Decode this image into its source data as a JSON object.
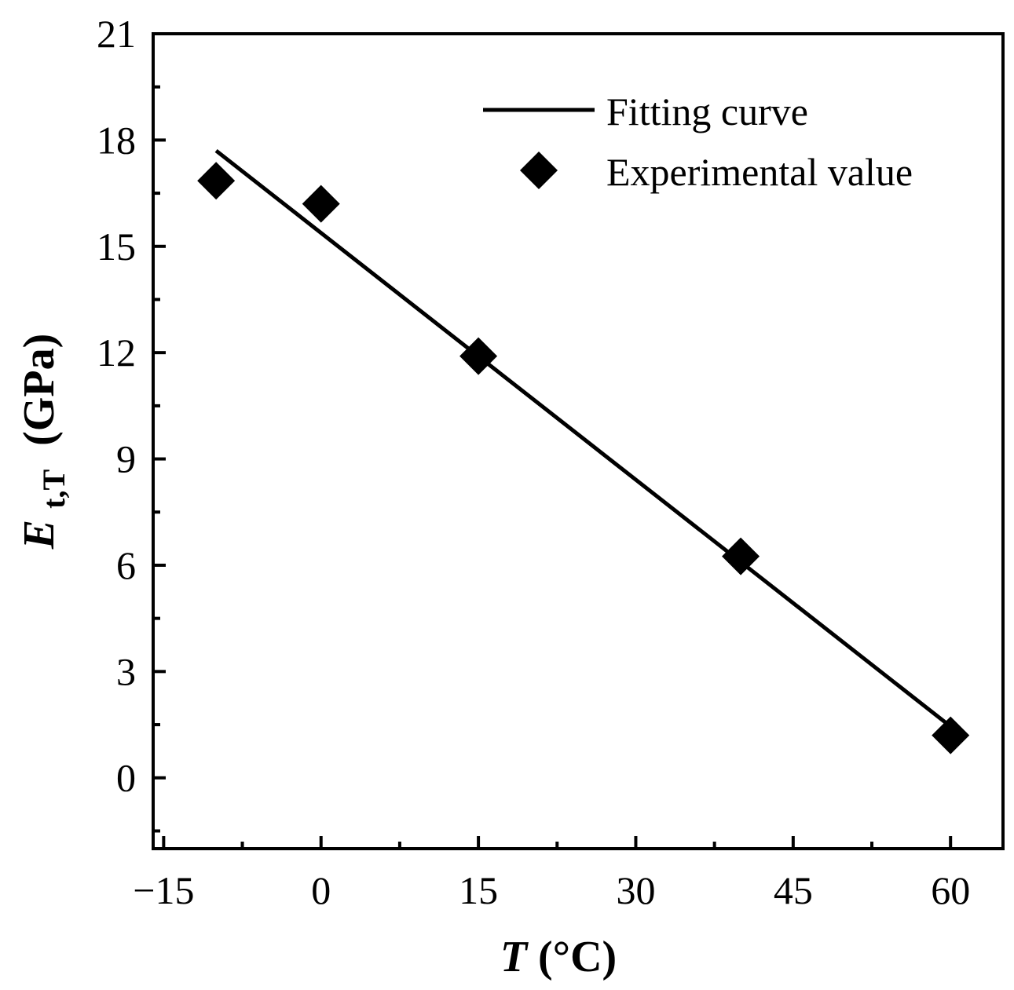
{
  "chart_data": {
    "type": "scatter",
    "xlabel_var": "T",
    "xlabel_unit": "(°C)",
    "ylabel_var": "E",
    "ylabel_sub": "t,T",
    "ylabel_unit": "(GPa)",
    "xlim": [
      -16,
      65
    ],
    "ylim": [
      -2,
      21
    ],
    "xticks": [
      -15,
      0,
      15,
      30,
      45,
      60
    ],
    "xtick_labels": [
      "−15",
      "0",
      "15",
      "30",
      "45",
      "60"
    ],
    "yticks": [
      0,
      3,
      6,
      9,
      12,
      15,
      18,
      21
    ],
    "ytick_labels": [
      "0",
      "3",
      "6",
      "9",
      "12",
      "15",
      "18",
      "21"
    ],
    "legend_position": "top-right",
    "series": [
      {
        "name": "Fitting curve",
        "kind": "line",
        "color": "#000000",
        "x": [
          -10,
          60
        ],
        "y": [
          17.7,
          1.45
        ]
      },
      {
        "name": "Experimental value",
        "kind": "scatter",
        "marker": "diamond",
        "color": "#000000",
        "x": [
          -10,
          0,
          15,
          40,
          60
        ],
        "y": [
          16.85,
          16.2,
          11.9,
          6.25,
          1.2
        ]
      }
    ]
  }
}
